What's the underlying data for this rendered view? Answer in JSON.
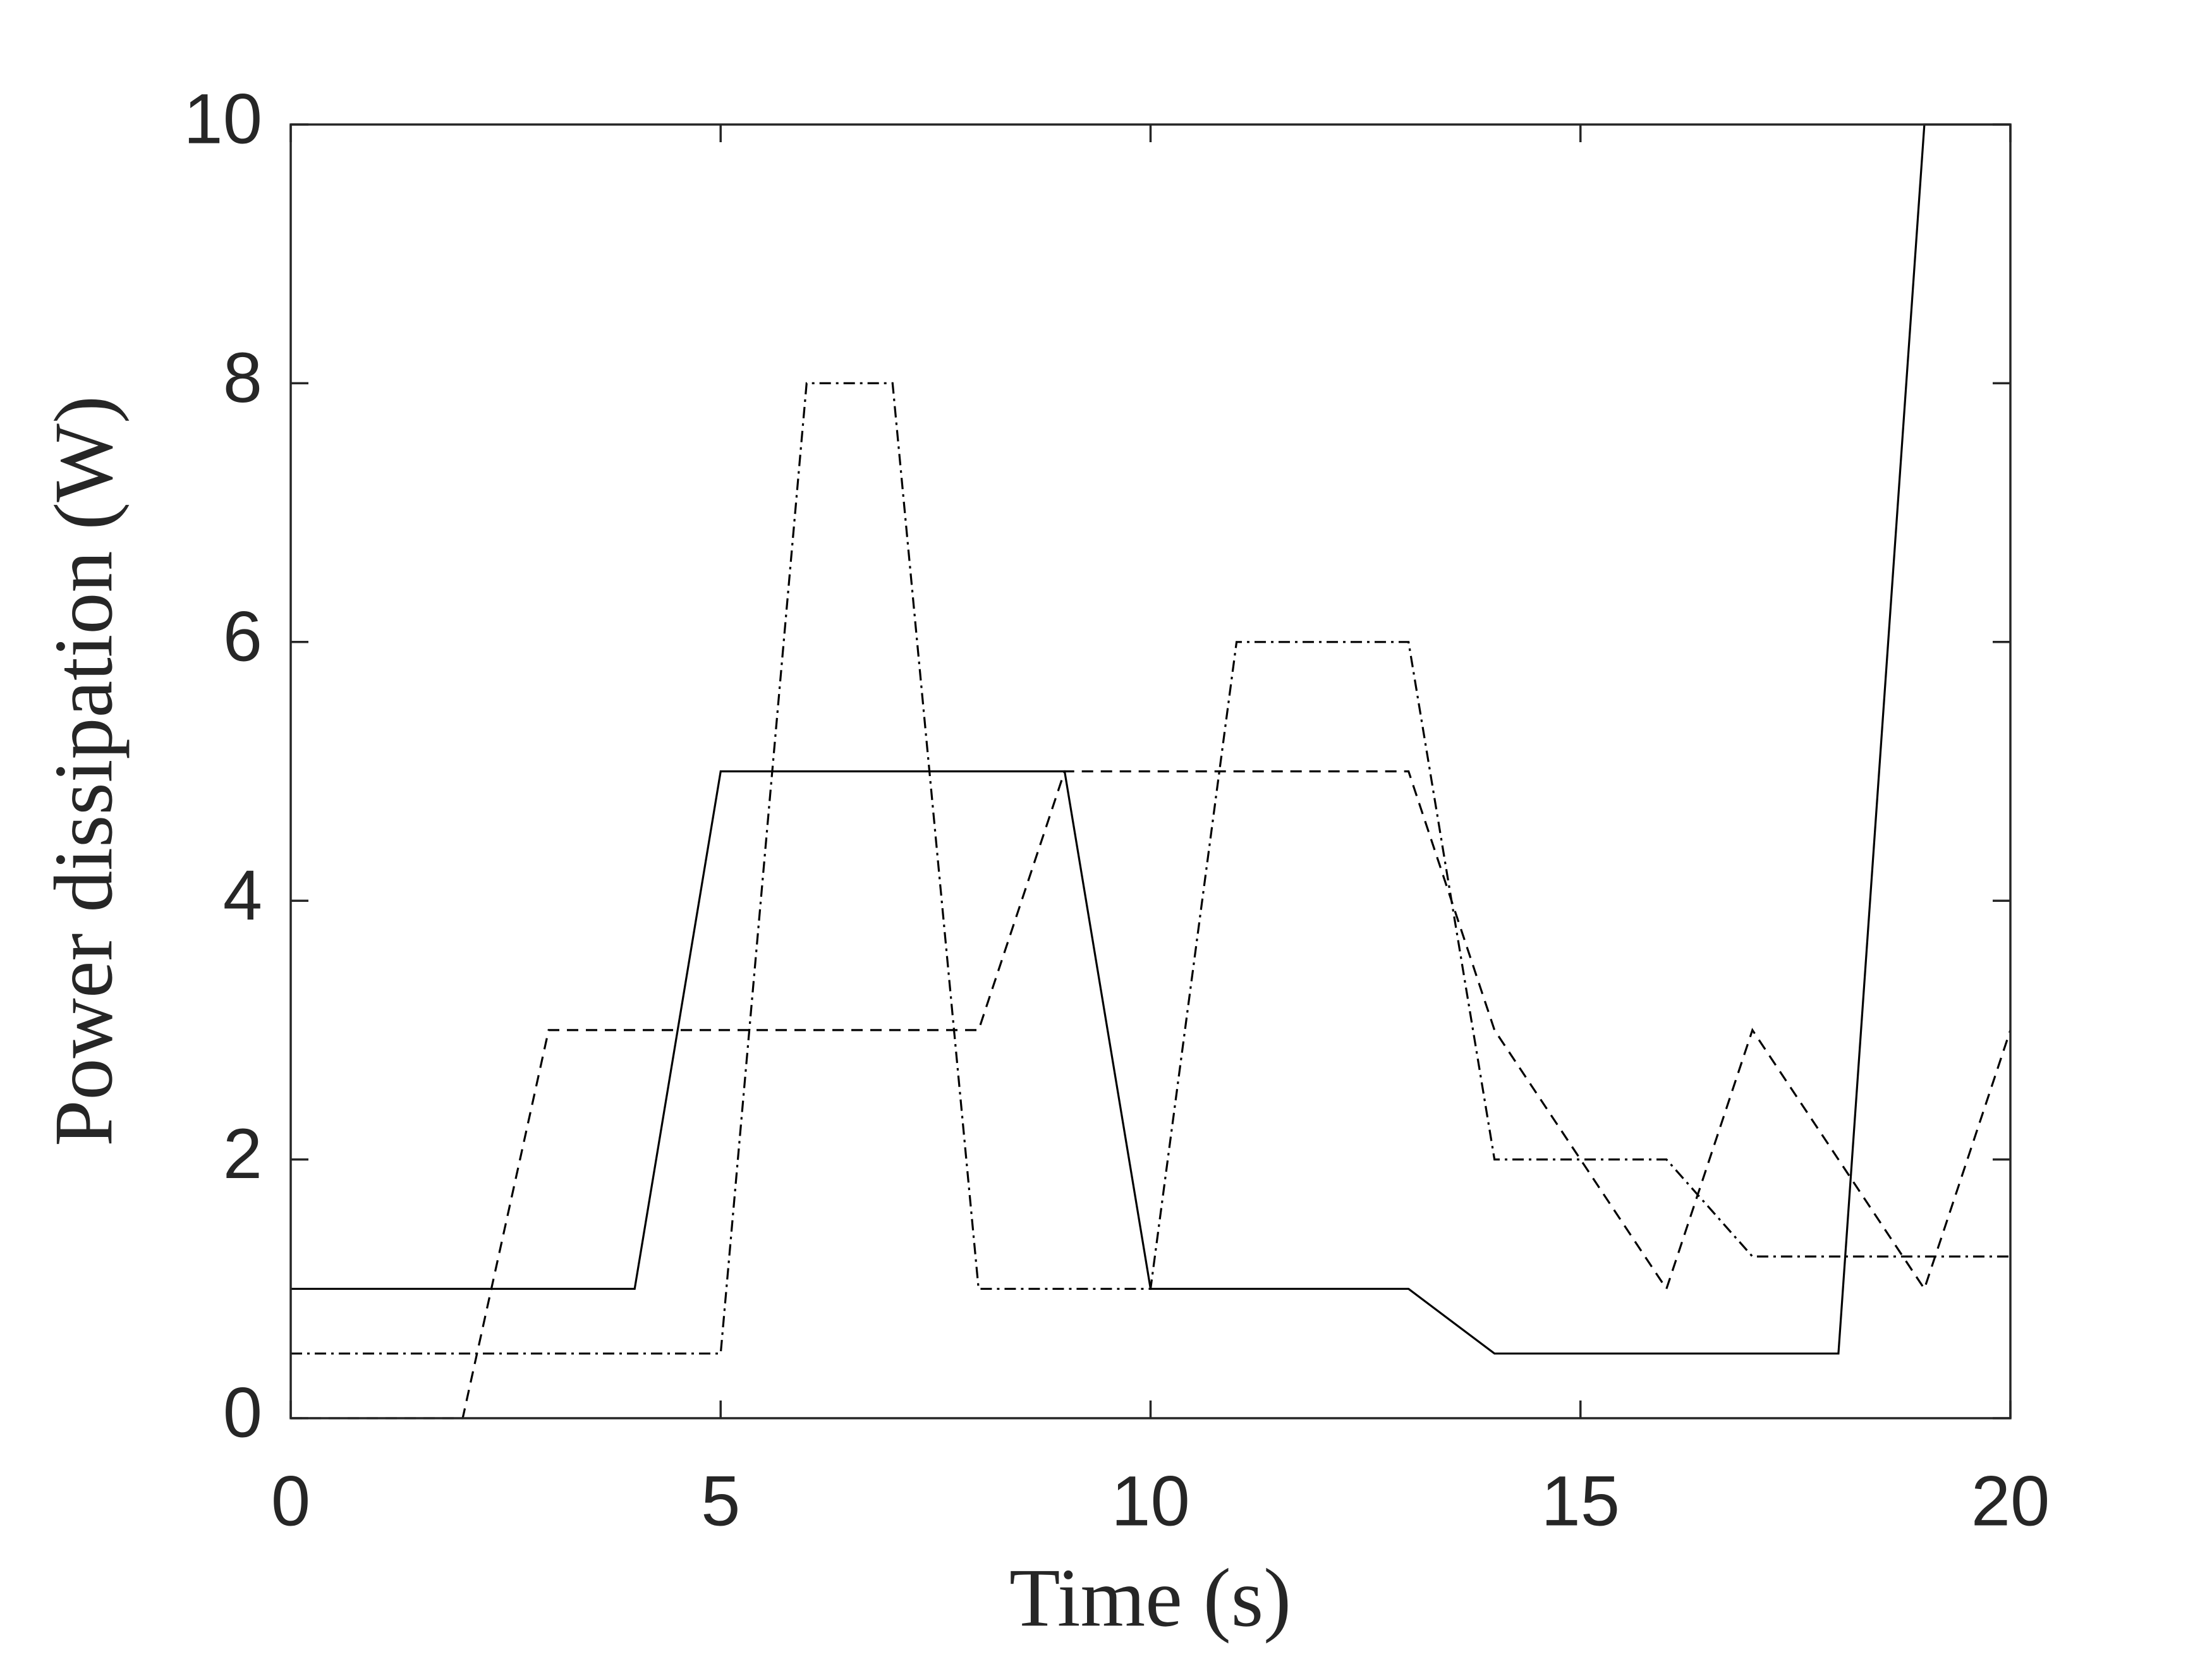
{
  "chart_data": {
    "type": "line",
    "x_label": "Time (s)",
    "y_label": "Power dissipation (W)",
    "x": [
      0,
      1,
      2,
      3,
      4,
      5,
      6,
      7,
      8,
      9,
      10,
      11,
      12,
      13,
      14,
      15,
      16,
      17,
      18,
      19,
      20
    ],
    "series": [
      {
        "color": "#000000",
        "dash": "solid",
        "values": [
          1,
          1,
          1,
          1,
          1,
          5,
          5,
          5,
          5,
          5,
          1,
          1,
          1,
          1,
          0.5,
          0.5,
          0.5,
          0.5,
          0.5,
          10,
          10
        ]
      },
      {
        "color": "#000000",
        "dash": "dashed",
        "values": [
          0,
          0,
          0,
          3,
          3,
          3,
          3,
          3,
          3,
          5,
          5,
          5,
          5,
          5,
          3,
          2,
          1,
          3,
          2,
          1,
          3
        ]
      },
      {
        "color": "#000000",
        "dash": "dashdot",
        "values": [
          0.5,
          0.5,
          0.5,
          0.5,
          0.5,
          0.5,
          8,
          8,
          1,
          1,
          1,
          6,
          6,
          6,
          2,
          2,
          2,
          1.25,
          1.25,
          1.25,
          1.25
        ]
      }
    ],
    "xlim": [
      0,
      20
    ],
    "xticks": [
      0,
      5,
      10,
      15,
      20
    ],
    "ylim": [
      0,
      10
    ],
    "yticks": [
      0,
      2,
      4,
      6,
      8,
      10
    ]
  }
}
